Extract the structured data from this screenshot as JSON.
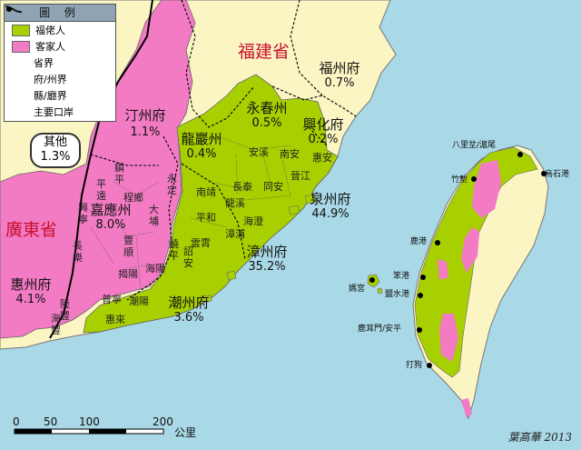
{
  "legend": {
    "title": "圖 例",
    "items": [
      {
        "label": "福佬人",
        "color": "#a8d000"
      },
      {
        "label": "客家人",
        "color": "#f27bc4"
      },
      {
        "label": "省界"
      },
      {
        "label": "府/州界"
      },
      {
        "label": "縣/廳界"
      },
      {
        "label": "主要口岸"
      }
    ]
  },
  "provinces": {
    "fujian": "福建省",
    "guangdong": "廣東省"
  },
  "others": {
    "label": "其他",
    "value": "1.3%"
  },
  "prefectures": [
    {
      "name": "福州府",
      "pct": "0.7%"
    },
    {
      "name": "永春州",
      "pct": "0.5%"
    },
    {
      "name": "興化府",
      "pct": "0.2%"
    },
    {
      "name": "汀州府",
      "pct": "1.1%"
    },
    {
      "name": "龍巖州",
      "pct": "0.4%"
    },
    {
      "name": "泉州府",
      "pct": "44.9%"
    },
    {
      "name": "漳州府",
      "pct": "35.2%"
    },
    {
      "name": "嘉應州",
      "pct": "8.0%"
    },
    {
      "name": "潮州府",
      "pct": "3.6%"
    },
    {
      "name": "惠州府",
      "pct": "4.1%"
    }
  ],
  "counties": [
    "安溪",
    "南安",
    "惠安",
    "晉江",
    "同安",
    "長泰",
    "龍溪",
    "海澄",
    "漳浦",
    "南靖",
    "平和",
    "詔安",
    "雲霄",
    "永定",
    "饒平",
    "揭陽",
    "海陽",
    "普寧",
    "潮陽",
    "惠來",
    "大埔",
    "豐順",
    "長樂",
    "興寧",
    "鎮平",
    "平遠",
    "程鄉",
    "陸豐",
    "海豐"
  ],
  "ports": [
    "八里坌/滬尾",
    "烏石港",
    "竹塹",
    "鹿港",
    "笨港",
    "鹽水港",
    "鹿耳門/安平",
    "打狗",
    "媽宮"
  ],
  "scale": {
    "ticks": [
      "0",
      "50",
      "100",
      "200"
    ],
    "unit": "公里"
  },
  "credit": "葉高華 2013",
  "colors": {
    "hoklo": "#a8d000",
    "hakka": "#f27bc4",
    "sea": "#a9d8e6",
    "land": "#fbf4c3"
  }
}
